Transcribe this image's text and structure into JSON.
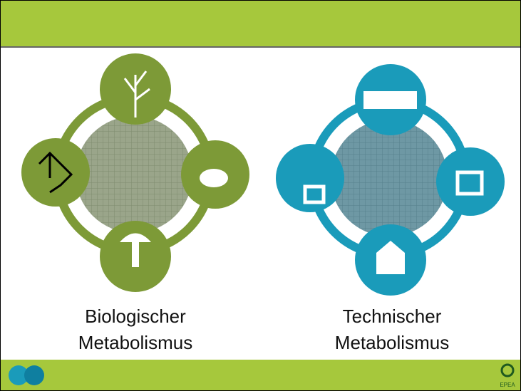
{
  "diagrams": [
    {
      "label_line1": "Biologischer",
      "label_line2": "Metabolismus"
    },
    {
      "label_line1": "Technischer",
      "label_line2": "Metabolismus"
    }
  ],
  "footer": {
    "logo_text": "EPEA"
  }
}
